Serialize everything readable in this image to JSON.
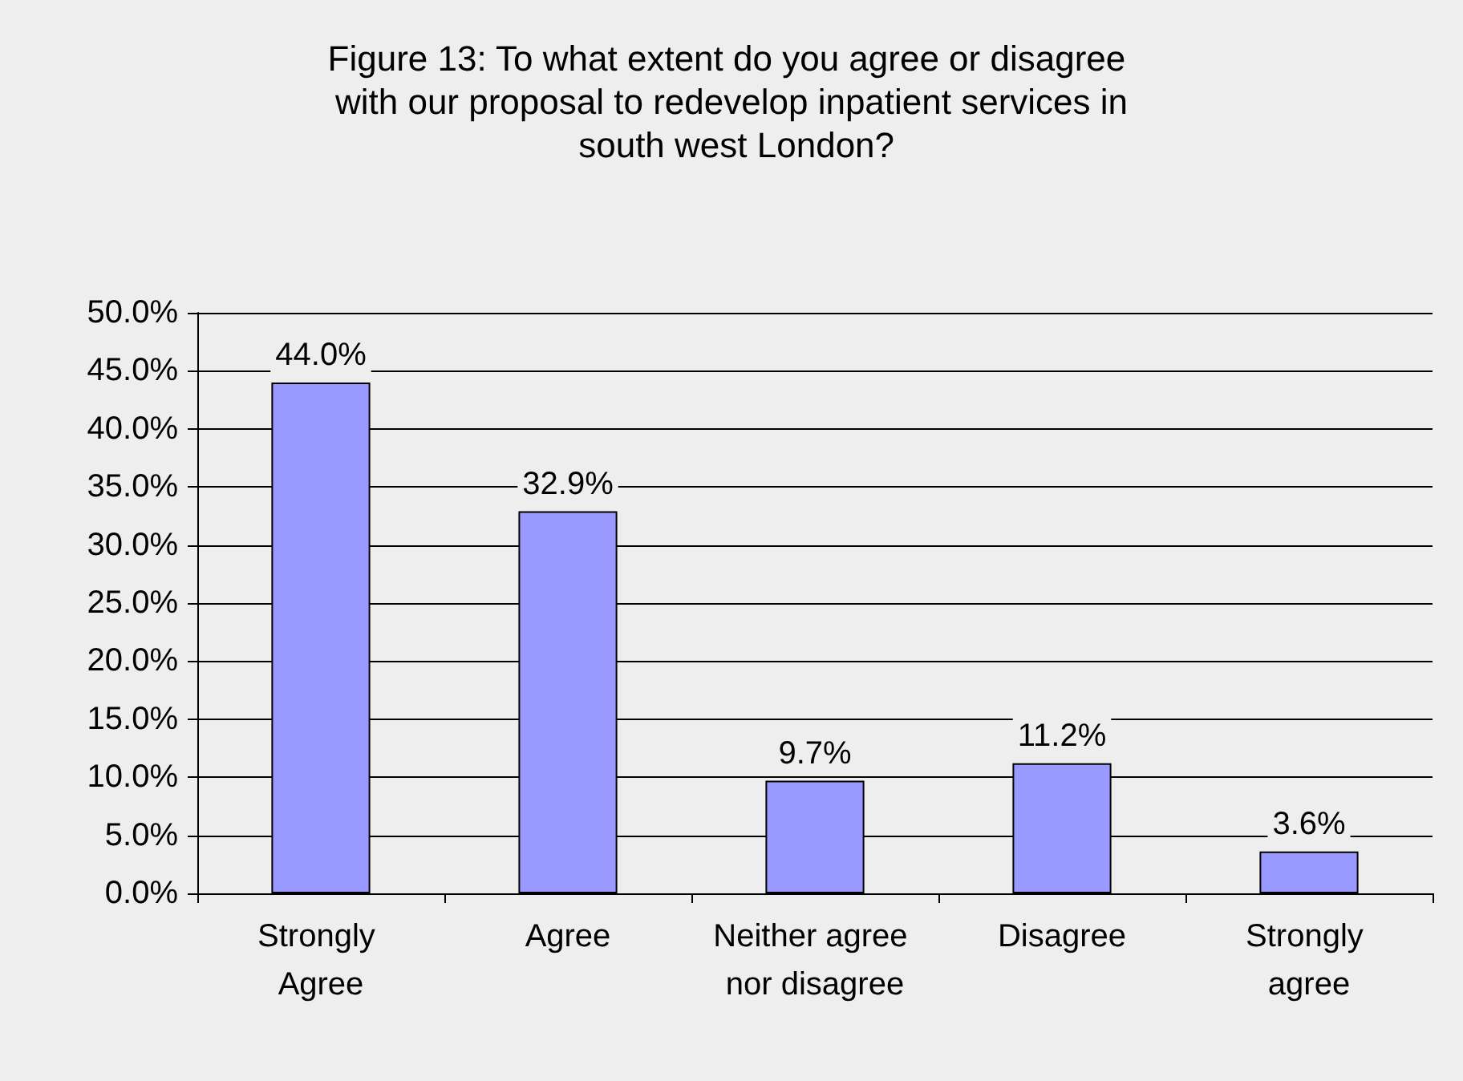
{
  "chart_data": {
    "type": "bar",
    "title": "Figure 13: To what extent do you agree or disagree with our proposal to redevelop inpatient services in south west London?",
    "categories": [
      "Strongly Agree",
      "Agree",
      "Neither agree nor disagree",
      "Disagree",
      "Strongly agree"
    ],
    "values": [
      44.0,
      32.9,
      9.7,
      11.2,
      3.6
    ],
    "value_labels": [
      "44.0%",
      "32.9%",
      "9.7%",
      "11.2%",
      "3.6%"
    ],
    "color": "#9999ff",
    "ylim": [
      0,
      50
    ],
    "yticks": [
      {
        "value": 0,
        "label": "0.0%"
      },
      {
        "value": 5,
        "label": "5.0%"
      },
      {
        "value": 10,
        "label": "10.0%"
      },
      {
        "value": 15,
        "label": "15.0%"
      },
      {
        "value": 20,
        "label": "20.0%"
      },
      {
        "value": 25,
        "label": "25.0%"
      },
      {
        "value": 30,
        "label": "30.0%"
      },
      {
        "value": 35,
        "label": "35.0%"
      },
      {
        "value": 40,
        "label": "40.0%"
      },
      {
        "value": 45,
        "label": "45.0%"
      },
      {
        "value": 50,
        "label": "50.0%"
      }
    ],
    "grid": "y"
  }
}
